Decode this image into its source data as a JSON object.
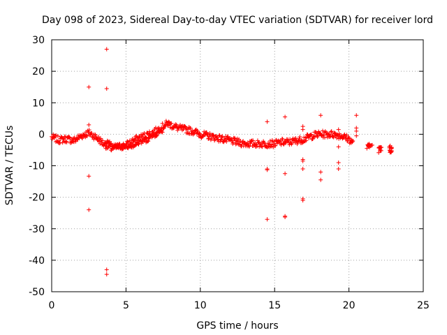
{
  "chart_data": {
    "type": "scatter",
    "title": "Day 098 of 2023, Sidereal Day-to-day VTEC variation (SDTVAR) for receiver lord",
    "xlabel": "GPS time / hours",
    "ylabel": "SDTVAR / TECUs",
    "xlim": [
      0,
      25
    ],
    "ylim": [
      -50,
      30
    ],
    "xticks": [
      0,
      5,
      10,
      15,
      20,
      25
    ],
    "yticks": [
      -50,
      -40,
      -30,
      -20,
      -10,
      0,
      10,
      20,
      30
    ],
    "grid": true,
    "marker": "plus",
    "color": "#ff0000",
    "band_knots": [
      [
        0.0,
        -1.0
      ],
      [
        0.5,
        -1.8
      ],
      [
        1.0,
        -1.5
      ],
      [
        1.5,
        -2.0
      ],
      [
        2.0,
        -0.5
      ],
      [
        2.5,
        0.5
      ],
      [
        3.0,
        -1.0
      ],
      [
        3.5,
        -3.0
      ],
      [
        4.0,
        -4.5
      ],
      [
        4.5,
        -4.0
      ],
      [
        5.0,
        -3.5
      ],
      [
        5.5,
        -2.0
      ],
      [
        6.0,
        -1.0
      ],
      [
        6.5,
        0.0
      ],
      [
        7.0,
        1.0
      ],
      [
        7.5,
        2.5
      ],
      [
        7.8,
        3.5
      ],
      [
        8.0,
        3.0
      ],
      [
        8.5,
        2.0
      ],
      [
        9.0,
        1.5
      ],
      [
        9.5,
        1.0
      ],
      [
        10.0,
        0.0
      ],
      [
        10.5,
        -0.5
      ],
      [
        11.0,
        -1.0
      ],
      [
        11.5,
        -1.5
      ],
      [
        12.0,
        -2.0
      ],
      [
        12.5,
        -2.5
      ],
      [
        13.0,
        -3.0
      ],
      [
        13.5,
        -3.0
      ],
      [
        14.0,
        -3.0
      ],
      [
        14.5,
        -3.0
      ],
      [
        15.0,
        -3.0
      ],
      [
        15.5,
        -2.5
      ],
      [
        16.0,
        -2.5
      ],
      [
        16.5,
        -2.0
      ],
      [
        17.0,
        -1.5
      ],
      [
        17.5,
        -0.5
      ],
      [
        18.0,
        0.0
      ],
      [
        18.5,
        0.0
      ],
      [
        19.0,
        0.0
      ],
      [
        19.5,
        -0.5
      ],
      [
        20.0,
        -1.5
      ],
      [
        20.3,
        -3.0
      ]
    ],
    "band2_knots": [
      [
        3.6,
        -2.5
      ],
      [
        4.5,
        -4.0
      ],
      [
        5.5,
        -3.5
      ],
      [
        6.5,
        -1.5
      ],
      [
        7.5,
        1.5
      ]
    ],
    "outliers": [
      [
        3.7,
        27
      ],
      [
        2.5,
        15
      ],
      [
        3.7,
        14.5
      ],
      [
        2.5,
        3
      ],
      [
        2.5,
        -13.3
      ],
      [
        2.5,
        -24
      ],
      [
        3.7,
        -43
      ],
      [
        3.7,
        -44.5
      ],
      [
        14.5,
        4
      ],
      [
        14.5,
        -11
      ],
      [
        14.5,
        -11.3
      ],
      [
        14.5,
        -27
      ],
      [
        15.7,
        5.5
      ],
      [
        15.7,
        -12.5
      ],
      [
        15.7,
        -26
      ],
      [
        15.7,
        -26.3
      ],
      [
        16.9,
        2.5
      ],
      [
        16.9,
        1.5
      ],
      [
        16.9,
        -8
      ],
      [
        16.9,
        -8.5
      ],
      [
        16.9,
        -11
      ],
      [
        16.9,
        -20.5
      ],
      [
        16.9,
        -21
      ],
      [
        18.1,
        6
      ],
      [
        18.1,
        -12
      ],
      [
        18.1,
        -14.5
      ],
      [
        19.3,
        1.5
      ],
      [
        19.3,
        -4
      ],
      [
        19.3,
        -9
      ],
      [
        19.3,
        -11
      ],
      [
        20.5,
        6
      ],
      [
        20.5,
        2
      ],
      [
        20.5,
        1
      ],
      [
        20.5,
        -0.5
      ]
    ],
    "clusters": [
      {
        "x": [
          21.2,
          21.6
        ],
        "y": [
          -4.5,
          -2.5
        ]
      },
      {
        "x": [
          22.0,
          22.2
        ],
        "y": [
          -6,
          -4
        ]
      },
      {
        "x": [
          22.7,
          22.9
        ],
        "y": [
          -6,
          -3.5
        ]
      }
    ]
  }
}
